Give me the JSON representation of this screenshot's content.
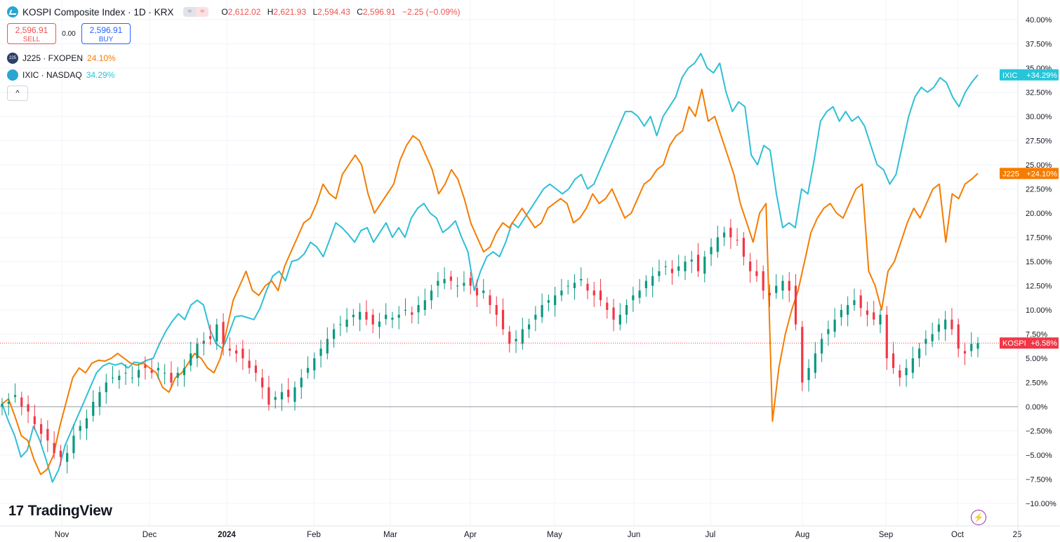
{
  "header": {
    "title": "KOSPI Composite Index · 1D · KRX",
    "ohlc": [
      {
        "k": "O",
        "v": "2,612.02"
      },
      {
        "k": "H",
        "v": "2,621.93"
      },
      {
        "k": "L",
        "v": "2,594.43"
      },
      {
        "k": "C",
        "v": "2,596.91"
      }
    ],
    "change": "−2.25 (−0.09%)"
  },
  "trade": {
    "sell_price": "2,596.91",
    "sell_label": "SELL",
    "spread": "0.00",
    "buy_price": "2,596.91",
    "buy_label": "BUY"
  },
  "compare": [
    {
      "icon": "225",
      "name": "J225 · FXOPEN",
      "value": "24.10%",
      "color": "#f57c00"
    },
    {
      "icon": "",
      "name": "IXIC · NASDAQ",
      "value": "34.29%",
      "color": "#26c6da"
    }
  ],
  "logo_text": "TradingView",
  "colors": {
    "up": "#089981",
    "down": "#f23645",
    "j225": "#f57c00",
    "ixic": "#2ebfd6",
    "grid": "#f0f3fa",
    "axis_text": "#131722"
  },
  "chart_data": {
    "type": "line",
    "title": "KOSPI Composite Index · 1D · KRX",
    "y_unit": "percent change",
    "ylim": [
      -11,
      40
    ],
    "y_ticks": [
      "40.00%",
      "37.50%",
      "35.00%",
      "32.50%",
      "30.00%",
      "27.50%",
      "25.00%",
      "22.50%",
      "20.00%",
      "17.50%",
      "15.00%",
      "12.50%",
      "10.00%",
      "7.50%",
      "5.00%",
      "2.50%",
      "0.00%",
      "−2.50%",
      "−5.00%",
      "−7.50%",
      "−10.00%"
    ],
    "x_labels": [
      "Nov",
      "Dec",
      "2024",
      "Feb",
      "Mar",
      "Apr",
      "May",
      "Jun",
      "Jul",
      "Aug",
      "Sep",
      "Oct",
      "25"
    ],
    "series": [
      {
        "name": "IXIC",
        "type": "line",
        "last_label": "IXIC",
        "last_value": "+34.29%",
        "values": [
          0.3,
          -1.5,
          -3.0,
          -5.2,
          -4.5,
          -2.0,
          -3.5,
          -5.5,
          -7.8,
          -6.5,
          -4.0,
          -2.5,
          -1.0,
          0.5,
          2.0,
          3.5,
          4.2,
          4.5,
          4.3,
          4.5,
          4.0,
          4.6,
          4.5,
          4.8,
          5.0,
          6.5,
          7.8,
          8.8,
          9.6,
          9.0,
          10.5,
          11.0,
          10.5,
          8.0,
          6.5,
          6.0,
          7.5,
          9.3,
          9.4,
          9.2,
          9.0,
          10.2,
          12.0,
          13.5,
          14.0,
          13.0,
          15.0,
          15.2,
          15.8,
          17.0,
          16.5,
          15.5,
          17.2,
          19.0,
          18.5,
          17.8,
          17.0,
          18.2,
          18.5,
          17.0,
          18.0,
          19.0,
          17.5,
          18.5,
          17.5,
          19.5,
          20.5,
          21.0,
          20.0,
          19.5,
          18.0,
          18.5,
          19.2,
          17.5,
          16.0,
          12.0,
          14.0,
          15.5,
          16.0,
          15.5,
          17.0,
          19.0,
          18.5,
          19.5,
          20.5,
          21.5,
          22.5,
          23.0,
          22.5,
          22.0,
          22.5,
          23.5,
          24.0,
          22.5,
          23.0,
          24.5,
          26.0,
          27.5,
          29.0,
          30.5,
          30.5,
          30.0,
          29.0,
          30.0,
          28.0,
          30.0,
          31.0,
          32.0,
          34.0,
          35.0,
          35.5,
          36.5,
          35.0,
          34.5,
          35.5,
          32.5,
          30.5,
          31.5,
          31.0,
          26.0,
          25.0,
          27.0,
          26.5,
          22.0,
          18.5,
          19.0,
          18.5,
          22.5,
          22.0,
          25.5,
          29.5,
          30.5,
          31.0,
          29.5,
          30.5,
          29.5,
          30.0,
          29.0,
          27.0,
          25.0,
          24.5,
          23.0,
          24.0,
          27.0,
          30.0,
          32.0,
          33.0,
          32.5,
          33.0,
          34.0,
          33.5,
          32.0,
          31.0,
          32.5,
          33.5,
          34.29
        ]
      },
      {
        "name": "J225",
        "type": "line",
        "last_label": "J225",
        "last_value": "+24.10%",
        "values": [
          0.3,
          0.8,
          -1.0,
          -3.0,
          -3.5,
          -5.5,
          -7.0,
          -6.5,
          -5.0,
          -2.0,
          0.5,
          3.0,
          4.0,
          3.5,
          4.5,
          4.8,
          4.7,
          5.0,
          5.5,
          5.0,
          4.5,
          4.3,
          4.5,
          4.0,
          3.5,
          2.0,
          1.5,
          3.0,
          3.5,
          4.5,
          5.5,
          5.0,
          4.0,
          3.5,
          5.0,
          8.0,
          11.0,
          12.5,
          14.0,
          12.0,
          11.5,
          12.5,
          13.0,
          12.0,
          14.5,
          16.0,
          17.5,
          19.0,
          19.5,
          21.0,
          23.0,
          22.0,
          21.5,
          24.0,
          25.0,
          26.0,
          25.0,
          22.0,
          20.0,
          21.0,
          22.0,
          23.0,
          25.5,
          27.0,
          28.0,
          27.5,
          26.0,
          24.5,
          22.0,
          23.0,
          24.5,
          23.5,
          21.5,
          19.0,
          17.5,
          16.0,
          16.5,
          18.0,
          19.0,
          18.5,
          19.5,
          20.5,
          19.5,
          18.5,
          19.0,
          20.5,
          21.0,
          21.5,
          21.0,
          19.0,
          19.5,
          20.5,
          22.0,
          21.0,
          21.5,
          22.5,
          21.0,
          19.5,
          20.0,
          21.5,
          23.0,
          23.5,
          24.5,
          25.0,
          27.0,
          28.0,
          28.5,
          31.0,
          30.0,
          32.8,
          29.5,
          30.0,
          28.0,
          26.0,
          24.0,
          21.0,
          19.0,
          17.0,
          20.0,
          21.0,
          -1.5,
          4.0,
          7.5,
          10.0,
          12.0,
          15.0,
          18.0,
          19.5,
          20.5,
          21.0,
          20.0,
          19.5,
          21.0,
          22.5,
          23.0,
          14.0,
          12.5,
          10.0,
          14.0,
          15.0,
          17.0,
          19.0,
          20.5,
          19.5,
          21.0,
          22.5,
          23.0,
          17.0,
          22.0,
          21.5,
          23.0,
          23.5,
          24.1
        ]
      },
      {
        "name": "KOSPI",
        "type": "candlestick",
        "last_label": "KOSPI",
        "last_value": "+6.58%",
        "closes": [
          0.3,
          0.5,
          1.2,
          0.0,
          -0.5,
          -1.8,
          -2.8,
          -3.5,
          -4.8,
          -5.2,
          -4.8,
          -3.0,
          -2.0,
          -1.2,
          0.5,
          1.5,
          2.5,
          3.0,
          3.2,
          3.5,
          3.0,
          3.8,
          4.0,
          3.5,
          4.0,
          3.5,
          2.5,
          3.5,
          4.0,
          5.5,
          6.5,
          6.8,
          7.0,
          8.5,
          6.5,
          5.8,
          5.5,
          5.0,
          4.0,
          3.5,
          2.0,
          0.2,
          1.0,
          1.5,
          1.0,
          2.0,
          3.0,
          4.0,
          5.0,
          6.0,
          7.0,
          8.0,
          8.5,
          9.0,
          9.5,
          9.8,
          9.0,
          8.5,
          8.8,
          9.5,
          9.2,
          9.5,
          10.0,
          9.5,
          10.5,
          11.0,
          12.0,
          13.0,
          13.2,
          13.0,
          12.5,
          12.8,
          12.5,
          11.5,
          12.0,
          10.5,
          9.5,
          8.0,
          6.5,
          7.0,
          8.0,
          8.5,
          9.5,
          10.5,
          11.0,
          11.5,
          12.0,
          12.5,
          12.8,
          13.2,
          12.0,
          11.5,
          11.0,
          10.0,
          9.0,
          9.5,
          10.5,
          11.5,
          12.0,
          13.0,
          13.5,
          14.0,
          14.5,
          13.8,
          14.5,
          15.0,
          15.2,
          14.0,
          15.5,
          16.5,
          17.5,
          18.0,
          17.5,
          17.2,
          15.5,
          14.0,
          13.5,
          12.0,
          11.5,
          12.5,
          13.0,
          12.0,
          8.5,
          2.5,
          4.0,
          5.5,
          7.0,
          8.0,
          9.0,
          10.0,
          10.5,
          11.0,
          10.2,
          9.5,
          9.0,
          9.5,
          5.0,
          4.0,
          3.0,
          4.0,
          5.0,
          6.0,
          7.0,
          7.5,
          8.5,
          9.0,
          8.0,
          6.0,
          5.5,
          6.5,
          6.58
        ]
      }
    ],
    "current_lines": [
      {
        "name": "KOSPI",
        "value": 6.58
      },
      {
        "name": "zero",
        "value": 0
      }
    ]
  }
}
